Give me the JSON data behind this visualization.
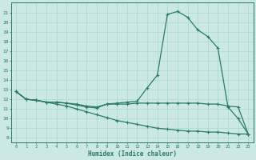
{
  "xlabel": "Humidex (Indice chaleur)",
  "bg_color": "#cce8e4",
  "line_color": "#2a7a6a",
  "grid_color": "#a8d8d0",
  "xlim": [
    -0.5,
    23.5
  ],
  "ylim": [
    7.5,
    22.0
  ],
  "xticks": [
    0,
    1,
    2,
    3,
    4,
    5,
    6,
    7,
    8,
    9,
    10,
    11,
    12,
    13,
    14,
    15,
    16,
    17,
    18,
    19,
    20,
    21,
    22,
    23
  ],
  "yticks": [
    8,
    9,
    10,
    11,
    12,
    13,
    14,
    15,
    16,
    17,
    18,
    19,
    20,
    21
  ],
  "line_peak_x": [
    0,
    1,
    2,
    3,
    4,
    5,
    6,
    7,
    8,
    9,
    10,
    11,
    12,
    13,
    14,
    15,
    16,
    17,
    18,
    19,
    20,
    21,
    22,
    23
  ],
  "line_peak_y": [
    12.8,
    12.0,
    11.9,
    11.7,
    11.7,
    11.6,
    11.4,
    11.2,
    11.1,
    11.5,
    11.6,
    11.7,
    11.8,
    13.2,
    14.5,
    20.8,
    21.1,
    20.5,
    19.2,
    18.5,
    17.3,
    11.2,
    10.0,
    8.4
  ],
  "line_flat_x": [
    0,
    1,
    2,
    3,
    4,
    5,
    6,
    7,
    8,
    9,
    10,
    11,
    12,
    13,
    14,
    15,
    16,
    17,
    18,
    19,
    20,
    21,
    22,
    23
  ],
  "line_flat_y": [
    12.8,
    12.0,
    11.9,
    11.7,
    11.7,
    11.6,
    11.5,
    11.3,
    11.2,
    11.5,
    11.5,
    11.5,
    11.6,
    11.6,
    11.6,
    11.6,
    11.6,
    11.6,
    11.6,
    11.5,
    11.5,
    11.3,
    11.2,
    8.4
  ],
  "line_desc_x": [
    0,
    1,
    2,
    3,
    4,
    5,
    6,
    7,
    8,
    9,
    10,
    11,
    12,
    13,
    14,
    15,
    16,
    17,
    18,
    19,
    20,
    21,
    22,
    23
  ],
  "line_desc_y": [
    12.8,
    12.0,
    11.9,
    11.7,
    11.5,
    11.3,
    11.0,
    10.7,
    10.4,
    10.1,
    9.8,
    9.6,
    9.4,
    9.2,
    9.0,
    8.9,
    8.8,
    8.7,
    8.7,
    8.6,
    8.6,
    8.5,
    8.4,
    8.4
  ]
}
